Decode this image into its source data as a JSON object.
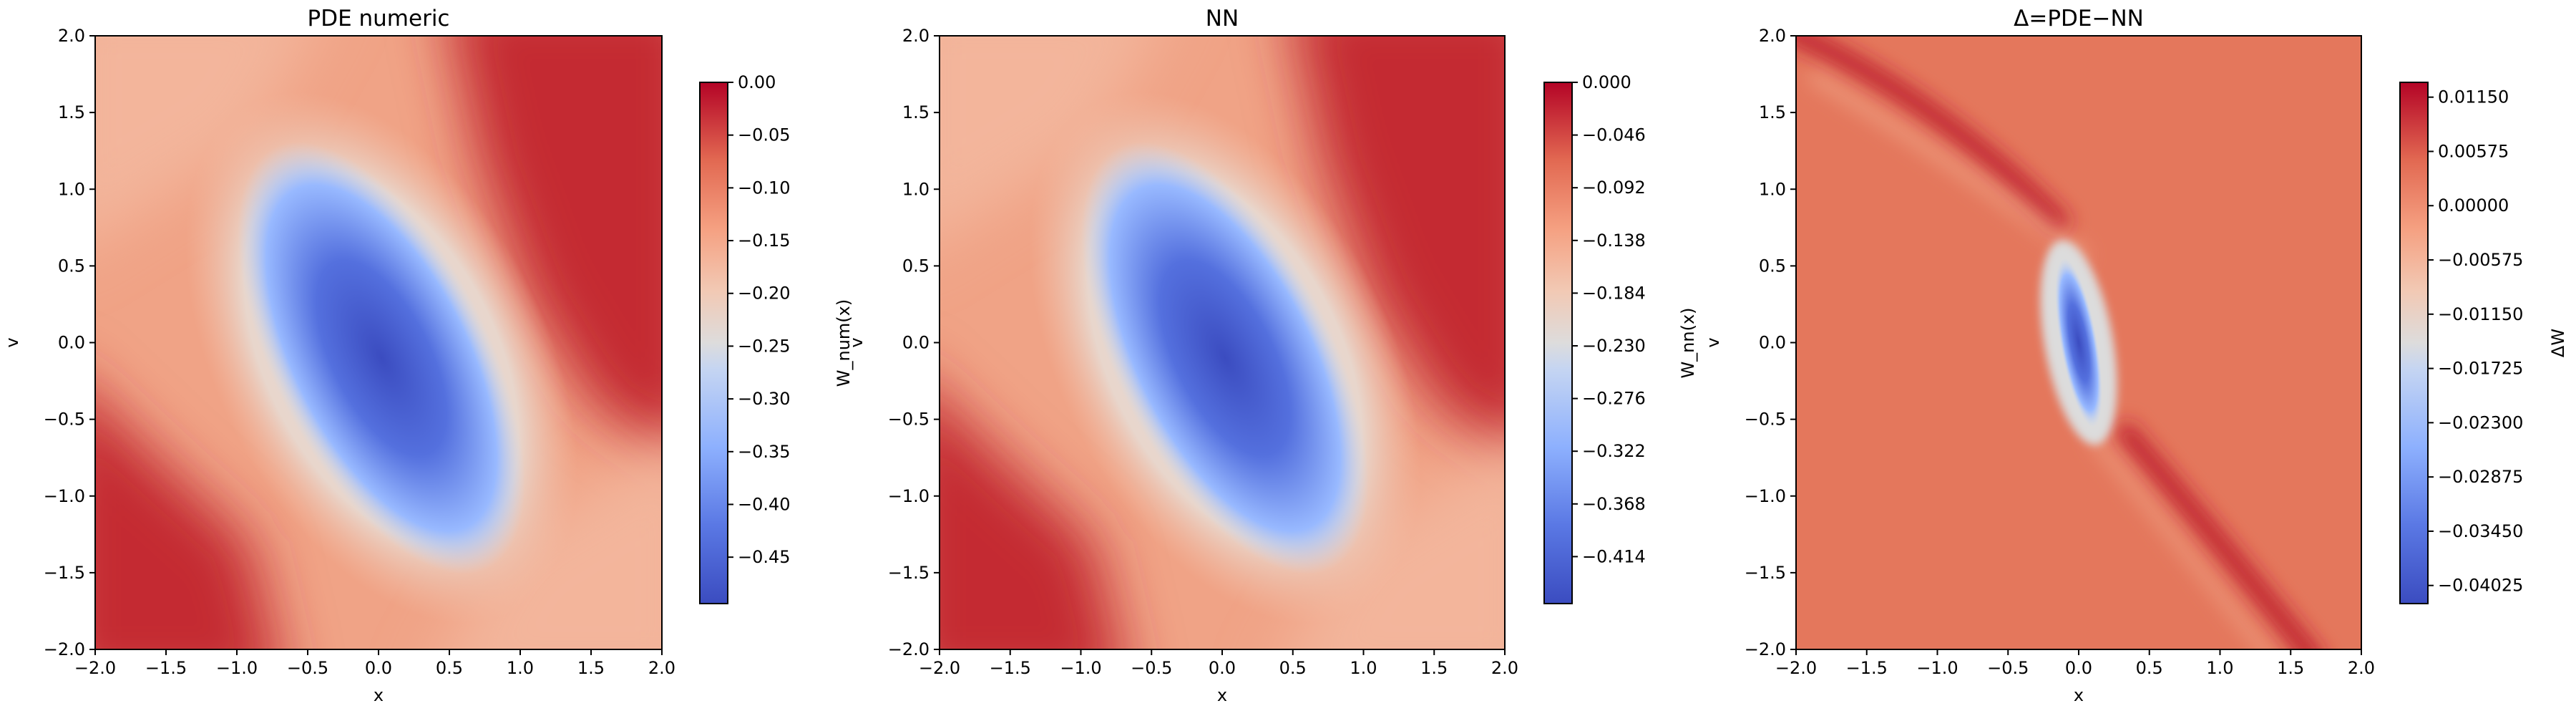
{
  "chart_data": [
    {
      "type": "heatmap",
      "title": "PDE numeric",
      "xlabel": "x",
      "ylabel": "v",
      "colorbar_label": "W_num(x)",
      "xlim": [
        -2,
        2
      ],
      "ylim": [
        -2,
        2
      ],
      "clim": [
        -0.494,
        0
      ],
      "xticks": [
        {
          "value": -2,
          "label": "−2.0"
        },
        {
          "value": -1.5,
          "label": "−1.5"
        },
        {
          "value": -1,
          "label": "−1.0"
        },
        {
          "value": -0.5,
          "label": "−0.5"
        },
        {
          "value": 0,
          "label": "0.0"
        },
        {
          "value": 0.5,
          "label": "0.5"
        },
        {
          "value": 1,
          "label": "1.0"
        },
        {
          "value": 1.5,
          "label": "1.5"
        },
        {
          "value": 2,
          "label": "2.0"
        }
      ],
      "yticks": [
        {
          "value": -2,
          "label": "−2.0"
        },
        {
          "value": -1.5,
          "label": "−1.5"
        },
        {
          "value": -1,
          "label": "−1.0"
        },
        {
          "value": -0.5,
          "label": "−0.5"
        },
        {
          "value": 0,
          "label": "0.0"
        },
        {
          "value": 0.5,
          "label": "0.5"
        },
        {
          "value": 1,
          "label": "1.0"
        },
        {
          "value": 1.5,
          "label": "1.5"
        },
        {
          "value": 2,
          "label": "2.0"
        }
      ],
      "cticks": [
        {
          "value": 0,
          "label": "0.00"
        },
        {
          "value": -0.05,
          "label": "−0.05"
        },
        {
          "value": -0.1,
          "label": "−0.10"
        },
        {
          "value": -0.15,
          "label": "−0.15"
        },
        {
          "value": -0.2,
          "label": "−0.20"
        },
        {
          "value": -0.25,
          "label": "−0.25"
        },
        {
          "value": -0.3,
          "label": "−0.30"
        },
        {
          "value": -0.35,
          "label": "−0.35"
        },
        {
          "value": -0.4,
          "label": "−0.40"
        },
        {
          "value": -0.45,
          "label": "−0.45"
        }
      ]
    },
    {
      "type": "heatmap",
      "title": "NN",
      "xlabel": "x",
      "ylabel": "v",
      "colorbar_label": "W_nn(x)",
      "xlim": [
        -2,
        2
      ],
      "ylim": [
        -2,
        2
      ],
      "clim": [
        -0.455,
        0
      ],
      "xticks": [
        {
          "value": -2,
          "label": "−2.0"
        },
        {
          "value": -1.5,
          "label": "−1.5"
        },
        {
          "value": -1,
          "label": "−1.0"
        },
        {
          "value": -0.5,
          "label": "−0.5"
        },
        {
          "value": 0,
          "label": "0.0"
        },
        {
          "value": 0.5,
          "label": "0.5"
        },
        {
          "value": 1,
          "label": "1.0"
        },
        {
          "value": 1.5,
          "label": "1.5"
        },
        {
          "value": 2,
          "label": "2.0"
        }
      ],
      "yticks": [
        {
          "value": -2,
          "label": "−2.0"
        },
        {
          "value": -1.5,
          "label": "−1.5"
        },
        {
          "value": -1,
          "label": "−1.0"
        },
        {
          "value": -0.5,
          "label": "−0.5"
        },
        {
          "value": 0,
          "label": "0.0"
        },
        {
          "value": 0.5,
          "label": "0.5"
        },
        {
          "value": 1,
          "label": "1.0"
        },
        {
          "value": 1.5,
          "label": "1.5"
        },
        {
          "value": 2,
          "label": "2.0"
        }
      ],
      "cticks": [
        {
          "value": 0,
          "label": "0.000"
        },
        {
          "value": -0.046,
          "label": "−0.046"
        },
        {
          "value": -0.092,
          "label": "−0.092"
        },
        {
          "value": -0.138,
          "label": "−0.138"
        },
        {
          "value": -0.184,
          "label": "−0.184"
        },
        {
          "value": -0.23,
          "label": "−0.230"
        },
        {
          "value": -0.276,
          "label": "−0.276"
        },
        {
          "value": -0.322,
          "label": "−0.322"
        },
        {
          "value": -0.368,
          "label": "−0.368"
        },
        {
          "value": -0.414,
          "label": "−0.414"
        }
      ]
    },
    {
      "type": "heatmap",
      "title": "Δ=PDE−NN",
      "xlabel": "x",
      "ylabel": "v",
      "colorbar_label": "ΔW",
      "xlim": [
        -2,
        2
      ],
      "ylim": [
        -2,
        2
      ],
      "clim": [
        -0.04217,
        0.01307
      ],
      "xticks": [
        {
          "value": -2,
          "label": "−2.0"
        },
        {
          "value": -1.5,
          "label": "−1.5"
        },
        {
          "value": -1,
          "label": "−1.0"
        },
        {
          "value": -0.5,
          "label": "−0.5"
        },
        {
          "value": 0,
          "label": "0.0"
        },
        {
          "value": 0.5,
          "label": "0.5"
        },
        {
          "value": 1,
          "label": "1.0"
        },
        {
          "value": 1.5,
          "label": "1.5"
        },
        {
          "value": 2,
          "label": "2.0"
        }
      ],
      "yticks": [
        {
          "value": -2,
          "label": "−2.0"
        },
        {
          "value": -1.5,
          "label": "−1.5"
        },
        {
          "value": -1,
          "label": "−1.0"
        },
        {
          "value": -0.5,
          "label": "−0.5"
        },
        {
          "value": 0,
          "label": "0.0"
        },
        {
          "value": 0.5,
          "label": "0.5"
        },
        {
          "value": 1,
          "label": "1.0"
        },
        {
          "value": 1.5,
          "label": "1.5"
        },
        {
          "value": 2,
          "label": "2.0"
        }
      ],
      "cticks": [
        {
          "value": 0.0115,
          "label": "0.01150"
        },
        {
          "value": 0.00575,
          "label": "0.00575"
        },
        {
          "value": 0,
          "label": "0.00000"
        },
        {
          "value": -0.00575,
          "label": "−0.00575"
        },
        {
          "value": -0.0115,
          "label": "−0.01150"
        },
        {
          "value": -0.01725,
          "label": "−0.01725"
        },
        {
          "value": -0.023,
          "label": "−0.02300"
        },
        {
          "value": -0.02875,
          "label": "−0.02875"
        },
        {
          "value": -0.0345,
          "label": "−0.03450"
        },
        {
          "value": -0.04025,
          "label": "−0.04025"
        }
      ]
    }
  ]
}
